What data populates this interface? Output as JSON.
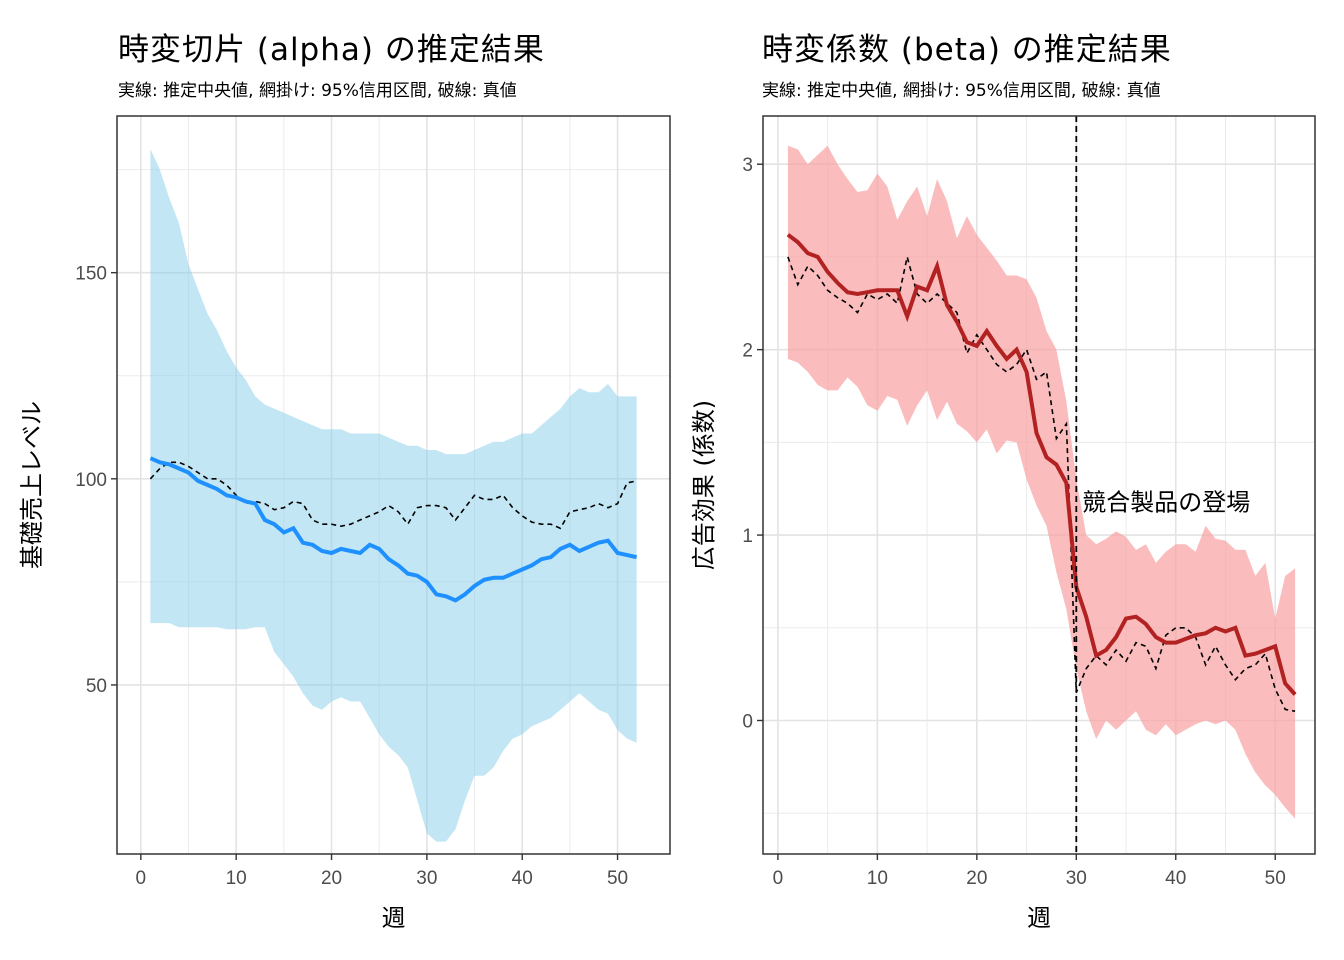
{
  "panels": [
    {
      "title": "時変切片 (alpha) の推定結果",
      "subtitle": "実線: 推定中央値, 網掛け: 95%信用区間, 破線: 真値"
    },
    {
      "title": "時変係数 (beta) の推定結果",
      "subtitle": "実線: 推定中央値, 網掛け: 95%信用区間, 破線: 真値"
    }
  ],
  "chart_data": [
    {
      "type": "line",
      "title": "時変切片 (alpha) の推定結果",
      "subtitle": "実線: 推定中央値, 網掛け: 95%信用区間, 破線: 真値",
      "xlabel": "週",
      "ylabel": "基礎売上レベル",
      "xlim": [
        -2.5,
        55.5
      ],
      "ylim": [
        9,
        188
      ],
      "x_ticks": [
        0,
        10,
        20,
        30,
        40,
        50
      ],
      "y_ticks": [
        50,
        100,
        150
      ],
      "grid": true,
      "colors": {
        "median": "#1e90ff",
        "band": "#87ceeb",
        "truth": "#000000"
      },
      "x": [
        1,
        2,
        3,
        4,
        5,
        6,
        7,
        8,
        9,
        10,
        11,
        12,
        13,
        14,
        15,
        16,
        17,
        18,
        19,
        20,
        21,
        22,
        23,
        24,
        25,
        26,
        27,
        28,
        29,
        30,
        31,
        32,
        33,
        34,
        35,
        36,
        37,
        38,
        39,
        40,
        41,
        42,
        43,
        44,
        45,
        46,
        47,
        48,
        49,
        50,
        51,
        52
      ],
      "series": [
        {
          "role": "median",
          "values": [
            105,
            104,
            103.5,
            102.5,
            101.5,
            99.5,
            98.5,
            97.5,
            96,
            95.5,
            94.5,
            94,
            90,
            89,
            87,
            88,
            84.5,
            84,
            82.5,
            82,
            83,
            82.5,
            82,
            84,
            83,
            80.5,
            79,
            77,
            76.5,
            75,
            72,
            71.5,
            70.5,
            72,
            74,
            75.5,
            76,
            76,
            77,
            78,
            79,
            80.5,
            81,
            83,
            84,
            82.5,
            83.5,
            84.5,
            85,
            82,
            81.5,
            81
          ]
        },
        {
          "role": "band_upper",
          "values": [
            180,
            175,
            168,
            162,
            152,
            146,
            140,
            136,
            131,
            127,
            124,
            120,
            118,
            117,
            116,
            115,
            114,
            113,
            112,
            112,
            112,
            111,
            111,
            111,
            111,
            110,
            109,
            108,
            108,
            107,
            107,
            106,
            106,
            106,
            107,
            108,
            109,
            109,
            110,
            111,
            111,
            113,
            115,
            117,
            120,
            122,
            121,
            121,
            123,
            120,
            120,
            120
          ]
        },
        {
          "role": "band_lower",
          "values": [
            65,
            65,
            65,
            64,
            64,
            64,
            64,
            64,
            63.5,
            63.5,
            63.5,
            64,
            64,
            58,
            55,
            52,
            48,
            45,
            44,
            46,
            47,
            46,
            46,
            42,
            38,
            35,
            33,
            30,
            22,
            14,
            12,
            12,
            15,
            22,
            28,
            28,
            30,
            34,
            37,
            38,
            40,
            41,
            42,
            44,
            46,
            48,
            46,
            44,
            43,
            39,
            37,
            36
          ]
        },
        {
          "role": "truth",
          "values": [
            100,
            102.5,
            104,
            104,
            103,
            101.5,
            100,
            100,
            98.5,
            96,
            94,
            94.5,
            94,
            92.5,
            93,
            94.5,
            94,
            90,
            89,
            89,
            88.5,
            89,
            90,
            91,
            92,
            93.5,
            92,
            89,
            93,
            93.5,
            93.5,
            93,
            90,
            93,
            96,
            95,
            95,
            96,
            93,
            91,
            89.5,
            89,
            89,
            88,
            92,
            92.5,
            93,
            94,
            93,
            94,
            99,
            99.5
          ]
        }
      ]
    },
    {
      "type": "line",
      "title": "時変係数 (beta) の推定結果",
      "subtitle": "実線: 推定中央値, 網掛け: 95%信用区間, 破線: 真値",
      "xlabel": "週",
      "ylabel": "広告効果 (係数)",
      "xlim": [
        -1.5,
        54
      ],
      "ylim": [
        -0.72,
        3.26
      ],
      "x_ticks": [
        0,
        10,
        20,
        30,
        40,
        50
      ],
      "y_ticks": [
        0,
        1,
        2,
        3
      ],
      "grid": true,
      "colors": {
        "median": "#b22222",
        "band": "#f8a0a0",
        "truth": "#000000"
      },
      "annotation": {
        "x": 30,
        "label": "競合製品の登場"
      },
      "x": [
        1,
        2,
        3,
        4,
        5,
        6,
        7,
        8,
        9,
        10,
        11,
        12,
        13,
        14,
        15,
        16,
        17,
        18,
        19,
        20,
        21,
        22,
        23,
        24,
        25,
        26,
        27,
        28,
        29,
        30,
        31,
        32,
        33,
        34,
        35,
        36,
        37,
        38,
        39,
        40,
        41,
        42,
        43,
        44,
        45,
        46,
        47,
        48,
        49,
        50,
        51,
        52
      ],
      "series": [
        {
          "role": "median",
          "values": [
            2.62,
            2.58,
            2.52,
            2.5,
            2.42,
            2.36,
            2.31,
            2.3,
            2.31,
            2.32,
            2.32,
            2.32,
            2.18,
            2.34,
            2.32,
            2.45,
            2.24,
            2.15,
            2.04,
            2.02,
            2.1,
            2.02,
            1.95,
            2.0,
            1.88,
            1.55,
            1.42,
            1.38,
            1.28,
            0.72,
            0.56,
            0.35,
            0.38,
            0.45,
            0.55,
            0.56,
            0.52,
            0.45,
            0.42,
            0.42,
            0.44,
            0.46,
            0.47,
            0.5,
            0.48,
            0.5,
            0.35,
            0.36,
            0.38,
            0.4,
            0.2,
            0.14
          ]
        },
        {
          "role": "band_upper",
          "values": [
            3.1,
            3.08,
            3.0,
            3.05,
            3.1,
            3.0,
            2.92,
            2.85,
            2.86,
            2.95,
            2.88,
            2.7,
            2.8,
            2.88,
            2.72,
            2.92,
            2.8,
            2.6,
            2.72,
            2.62,
            2.55,
            2.48,
            2.4,
            2.4,
            2.38,
            2.28,
            2.1,
            2.0,
            1.72,
            1.3,
            1.0,
            0.95,
            0.98,
            1.02,
            0.99,
            0.92,
            0.95,
            0.85,
            0.91,
            0.95,
            0.95,
            0.91,
            1.05,
            0.98,
            0.97,
            0.92,
            0.92,
            0.78,
            0.85,
            0.55,
            0.78,
            0.82
          ]
        },
        {
          "role": "band_lower",
          "values": [
            1.95,
            1.93,
            1.88,
            1.81,
            1.78,
            1.78,
            1.85,
            1.8,
            1.7,
            1.67,
            1.75,
            1.73,
            1.59,
            1.7,
            1.78,
            1.62,
            1.72,
            1.6,
            1.56,
            1.5,
            1.57,
            1.44,
            1.51,
            1.5,
            1.3,
            1.16,
            1.05,
            0.8,
            0.6,
            0.28,
            0.05,
            -0.1,
            0.0,
            -0.05,
            0.0,
            0.05,
            -0.05,
            -0.08,
            -0.02,
            -0.08,
            -0.05,
            -0.02,
            0.0,
            -0.02,
            0.0,
            -0.05,
            -0.18,
            -0.28,
            -0.35,
            -0.4,
            -0.47,
            -0.53
          ]
        },
        {
          "role": "truth",
          "values": [
            2.5,
            2.35,
            2.45,
            2.4,
            2.32,
            2.28,
            2.25,
            2.2,
            2.3,
            2.27,
            2.3,
            2.25,
            2.5,
            2.3,
            2.25,
            2.3,
            2.25,
            2.2,
            1.98,
            2.08,
            2.0,
            1.92,
            1.88,
            1.92,
            2.0,
            1.84,
            1.88,
            1.52,
            1.6,
            0.15,
            0.28,
            0.35,
            0.3,
            0.38,
            0.32,
            0.42,
            0.4,
            0.28,
            0.46,
            0.5,
            0.5,
            0.45,
            0.3,
            0.4,
            0.3,
            0.22,
            0.28,
            0.3,
            0.36,
            0.17,
            0.06,
            0.05
          ]
        }
      ]
    }
  ]
}
